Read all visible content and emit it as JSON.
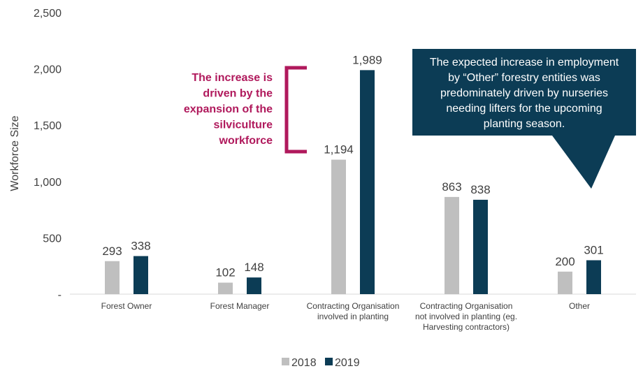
{
  "chart_data": {
    "type": "bar",
    "ylabel": "Workforce Size",
    "ylim": [
      0,
      2500
    ],
    "yticks": [
      {
        "value": 0,
        "label": "-"
      },
      {
        "value": 500,
        "label": "500"
      },
      {
        "value": 1000,
        "label": "1,000"
      },
      {
        "value": 1500,
        "label": "1,500"
      },
      {
        "value": 2000,
        "label": "2,000"
      },
      {
        "value": 2500,
        "label": "2,500"
      }
    ],
    "categories": [
      [
        "Forest Owner"
      ],
      [
        "Forest Manager"
      ],
      [
        "Contracting Organisation",
        "involved in planting"
      ],
      [
        "Contracting Organisation",
        "not involved in planting (eg.",
        "Harvesting contractors)"
      ],
      [
        "Other"
      ]
    ],
    "series": [
      {
        "name": "2018",
        "color": "#bfbfbf",
        "values": [
          293,
          102,
          1194,
          863,
          200
        ],
        "labels": [
          "293",
          "102",
          "1,194",
          "863",
          "200"
        ]
      },
      {
        "name": "2019",
        "color": "#0c3c55",
        "values": [
          338,
          148,
          1989,
          838,
          301
        ],
        "labels": [
          "338",
          "148",
          "1,989",
          "838",
          "301"
        ]
      }
    ],
    "grid": false,
    "legend_position": "bottom",
    "annotations": [
      {
        "lines": [
          "The increase is",
          "driven by the",
          "expansion of the",
          "silviculture",
          "workforce"
        ],
        "color": "#b0195c",
        "style": "bracket"
      },
      {
        "lines": [
          "The expected increase in employment",
          "by “Other” forestry entities was",
          "predominately driven by nurseries",
          "needing lifters for the upcoming",
          "planting season."
        ],
        "color": "#0c3c55",
        "style": "callout"
      }
    ]
  }
}
